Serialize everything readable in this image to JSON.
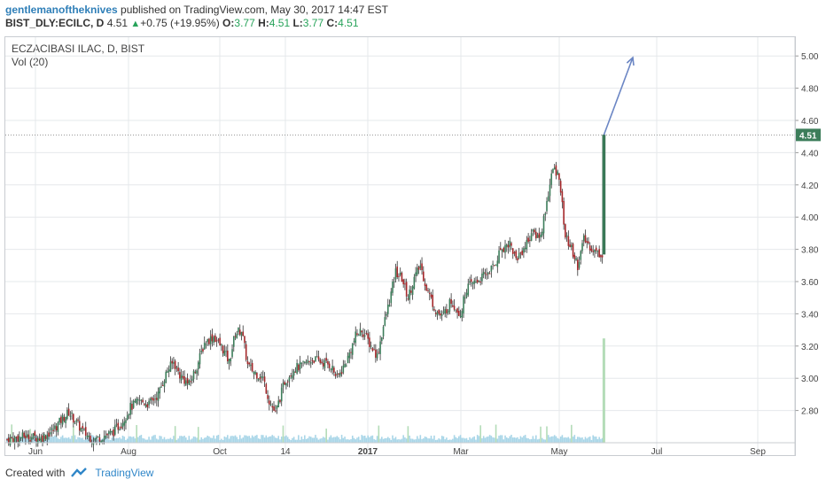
{
  "header": {
    "author": "gentlemanoftheknives",
    "published_text": " published on TradingView.com, May 30, 2017 14:47 EST",
    "symbol": "BIST_DLY:ECILC, D",
    "last": "4.51",
    "change": "+0.75 (+19.95%)",
    "o_label": "O:",
    "o_val": "3.77",
    "h_label": "H:",
    "h_val": "4.51",
    "l_label": "L:",
    "l_val": "3.77",
    "c_label": "C:",
    "c_val": "4.51"
  },
  "legend": {
    "title": "ECZACIBASI ILAC, D, BIST",
    "volume": "Vol (20)"
  },
  "footer": {
    "created": "Created with",
    "brand": "TradingView"
  },
  "colors": {
    "up": "#3c7d5a",
    "down": "#a5282b",
    "grid": "#e6e8eb",
    "axis": "#c9ccd1",
    "arrow": "#6b86c4",
    "last_tag": "#3c7d5a",
    "volume": "#a9d6e8",
    "volume_spike": "#b4dcb8"
  },
  "chart_data": {
    "type": "candlestick",
    "title": "ECZACIBASI ILAC, D, BIST",
    "ylim": [
      2.6,
      5.1
    ],
    "y_ticks": [
      "2.80",
      "3.00",
      "3.20",
      "3.40",
      "3.60",
      "3.80",
      "4.00",
      "4.20",
      "4.40",
      "4.60",
      "4.80",
      "5.00"
    ],
    "x_ticks": [
      "Jun",
      "Aug",
      "Oct",
      "14",
      "2017",
      "Mar",
      "May",
      "Jul",
      "Sep"
    ],
    "last_price_label": "4.51",
    "last_price": 4.51,
    "close_path": [
      [
        0,
        2.62
      ],
      [
        12,
        2.64
      ],
      [
        22,
        2.63
      ],
      [
        30,
        2.68
      ],
      [
        36,
        2.75
      ],
      [
        40,
        2.79
      ],
      [
        46,
        2.71
      ],
      [
        50,
        2.66
      ],
      [
        56,
        2.62
      ],
      [
        62,
        2.64
      ],
      [
        68,
        2.66
      ],
      [
        74,
        2.72
      ],
      [
        80,
        2.82
      ],
      [
        86,
        2.86
      ],
      [
        92,
        2.84
      ],
      [
        98,
        2.9
      ],
      [
        104,
        3.05
      ],
      [
        108,
        3.1
      ],
      [
        112,
        3.02
      ],
      [
        118,
        2.96
      ],
      [
        124,
        3.1
      ],
      [
        128,
        3.22
      ],
      [
        134,
        3.26
      ],
      [
        140,
        3.18
      ],
      [
        144,
        3.1
      ],
      [
        148,
        3.28
      ],
      [
        152,
        3.3
      ],
      [
        156,
        3.08
      ],
      [
        160,
        3.04
      ],
      [
        166,
        3.0
      ],
      [
        170,
        2.86
      ],
      [
        174,
        2.78
      ],
      [
        180,
        2.98
      ],
      [
        186,
        3.06
      ],
      [
        192,
        3.08
      ],
      [
        198,
        3.12
      ],
      [
        204,
        3.1
      ],
      [
        210,
        3.08
      ],
      [
        214,
        3.0
      ],
      [
        220,
        3.1
      ],
      [
        226,
        3.26
      ],
      [
        230,
        3.3
      ],
      [
        236,
        3.2
      ],
      [
        240,
        3.14
      ],
      [
        244,
        3.32
      ],
      [
        248,
        3.48
      ],
      [
        252,
        3.66
      ],
      [
        256,
        3.62
      ],
      [
        260,
        3.5
      ],
      [
        264,
        3.62
      ],
      [
        268,
        3.7
      ],
      [
        272,
        3.56
      ],
      [
        278,
        3.42
      ],
      [
        282,
        3.38
      ],
      [
        288,
        3.48
      ],
      [
        294,
        3.4
      ],
      [
        298,
        3.56
      ],
      [
        304,
        3.6
      ],
      [
        310,
        3.64
      ],
      [
        316,
        3.7
      ],
      [
        320,
        3.8
      ],
      [
        326,
        3.84
      ],
      [
        330,
        3.74
      ],
      [
        336,
        3.82
      ],
      [
        340,
        3.9
      ],
      [
        346,
        3.88
      ],
      [
        350,
        4.1
      ],
      [
        354,
        4.3
      ],
      [
        358,
        4.26
      ],
      [
        362,
        3.88
      ],
      [
        366,
        3.8
      ],
      [
        370,
        3.7
      ],
      [
        374,
        3.86
      ],
      [
        378,
        3.82
      ],
      [
        382,
        3.78
      ],
      [
        386,
        3.77
      ],
      [
        387,
        4.51
      ]
    ],
    "arrow_target": [
      400,
      4.99
    ],
    "volume_spike_value": 0.62
  }
}
